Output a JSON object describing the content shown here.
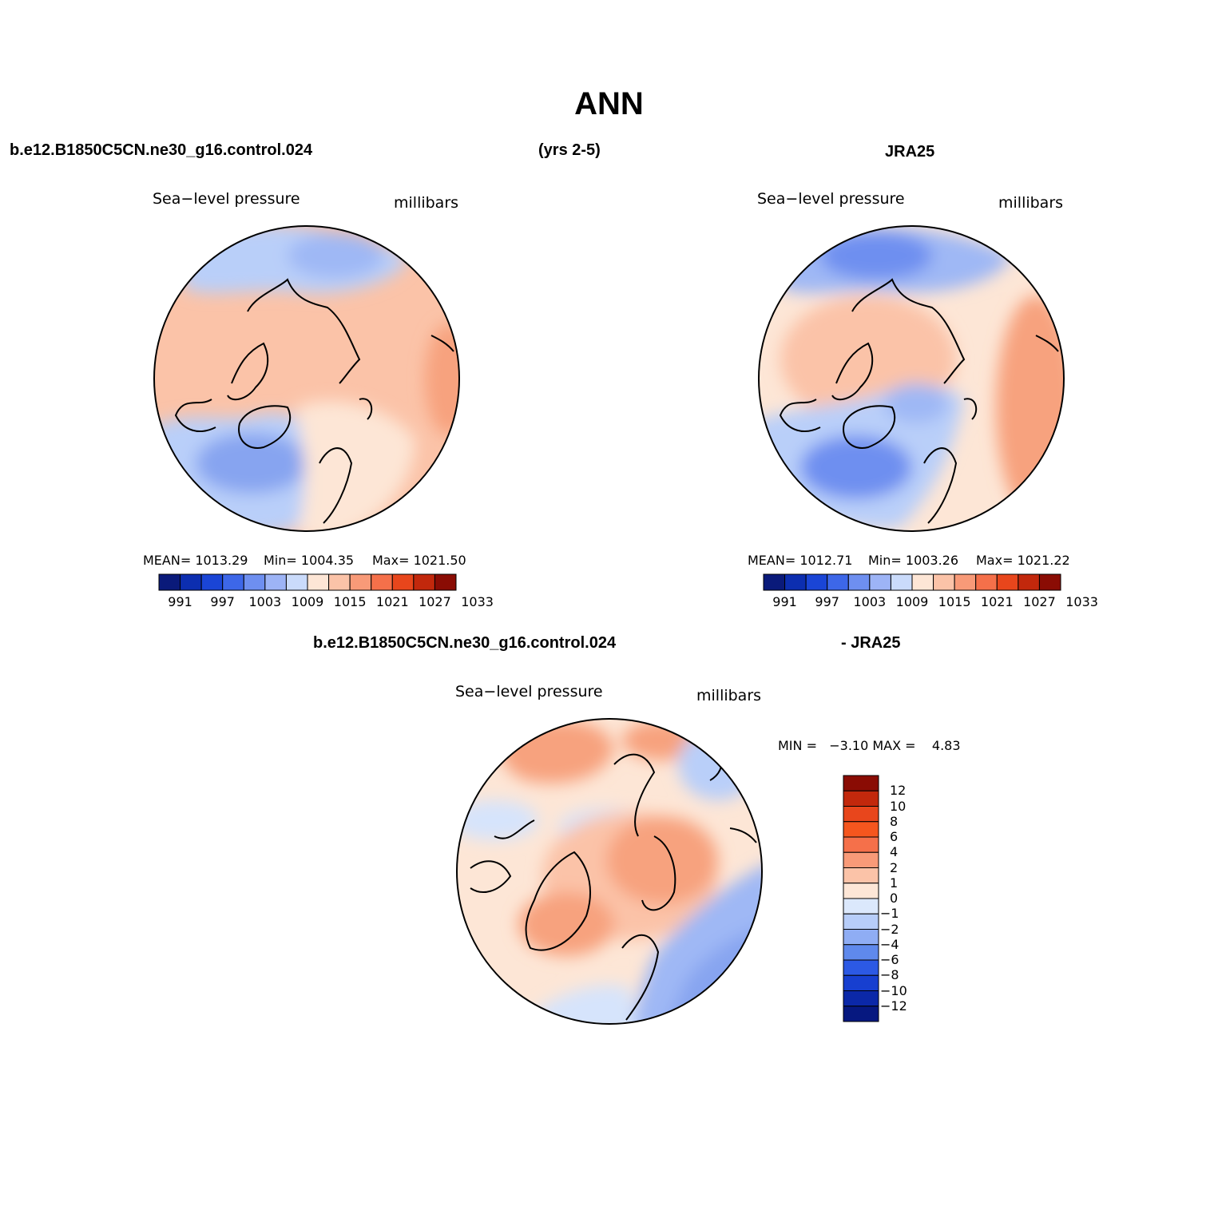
{
  "page": {
    "title": "ANN",
    "case_name": "b.e12.B1850C5CN.ne30_g16.control.024",
    "years": "(yrs 2-5)",
    "obs_name": "JRA25",
    "diff_case": "b.e12.B1850C5CN.ne30_g16.control.024",
    "diff_obs": "- JRA25"
  },
  "panels": [
    {
      "id": "model",
      "variable": "Sea−level pressure",
      "units": "millibars",
      "mean_text": "MEAN= 1013.29",
      "min_text": "Min= 1004.35",
      "max_text": "Max= 1021.50"
    },
    {
      "id": "obs",
      "variable": "Sea−level pressure",
      "units": "millibars",
      "mean_text": "MEAN= 1012.71",
      "min_text": "Min= 1003.26",
      "max_text": "Max= 1021.22"
    }
  ],
  "diff_panel": {
    "variable": "Sea−level pressure",
    "units": "millibars",
    "minmax_text": "MIN =   −3.10 MAX =    4.83"
  },
  "abs_colorbar": {
    "colors": [
      "#0a1a7a",
      "#0c2eb0",
      "#1a45d6",
      "#3d67e8",
      "#6e8ff0",
      "#9db4f6",
      "#cadbfb",
      "#fde6d6",
      "#fbc3a8",
      "#f89a78",
      "#f5704a",
      "#e8461c",
      "#c2280c",
      "#8a0c04"
    ],
    "ticks": [
      "991",
      "997",
      "1003",
      "1009",
      "1015",
      "1021",
      "1027",
      "1033"
    ]
  },
  "diff_colorbar": {
    "colors_top_to_bottom": [
      "#8a0c04",
      "#c2280c",
      "#e8461c",
      "#f5561e",
      "#f5704a",
      "#f89a78",
      "#fbc3a8",
      "#fde6d6",
      "#dbe8fc",
      "#b7cdf9",
      "#8fadf4",
      "#5f89ec",
      "#2c59e4",
      "#173fd0",
      "#0b28a8",
      "#061880"
    ],
    "ticks_top_to_bottom": [
      "12",
      "10",
      "8",
      "6",
      "4",
      "2",
      "1",
      "0",
      "−1",
      "−2",
      "−4",
      "−6",
      "−8",
      "−10",
      "−12"
    ]
  }
}
